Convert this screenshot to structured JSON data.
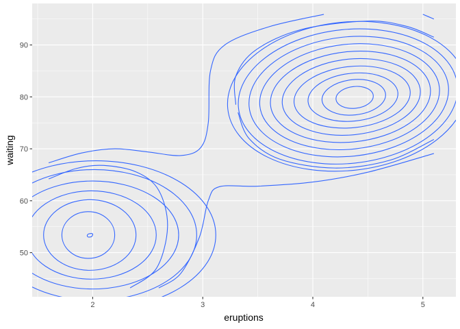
{
  "chart_data": {
    "type": "contour",
    "title": "",
    "xlabel": "eruptions",
    "ylabel": "waiting",
    "xlim": [
      1.45,
      5.3
    ],
    "ylim": [
      41.5,
      98
    ],
    "xticks": [
      2,
      3,
      4,
      5
    ],
    "yticks": [
      50,
      60,
      70,
      80,
      90
    ],
    "xtick_labels": [
      "2",
      "3",
      "4",
      "5"
    ],
    "ytick_labels": [
      "50",
      "60",
      "70",
      "80",
      "90"
    ],
    "grid": true,
    "legend": "none",
    "colors": {
      "panel": "#ebebeb",
      "grid_major": "#ffffff",
      "contour": "#3366ff"
    },
    "contours": [
      {
        "name": "outer-1",
        "points": [
          [
            1.6,
            67.3
          ],
          [
            1.9,
            69.2
          ],
          [
            2.2,
            70
          ],
          [
            2.5,
            69.4
          ],
          [
            2.8,
            68.7
          ],
          [
            2.98,
            70.2
          ],
          [
            3.05,
            75
          ],
          [
            3.07,
            85
          ],
          [
            3.2,
            90
          ],
          [
            3.6,
            93.5
          ],
          [
            4.1,
            95.9
          ]
        ]
      },
      {
        "name": "outer-2",
        "points": [
          [
            1.6,
            64.2
          ],
          [
            1.85,
            66.2
          ],
          [
            2.1,
            66.8
          ],
          [
            2.4,
            65.5
          ],
          [
            2.6,
            62
          ],
          [
            2.68,
            55
          ],
          [
            2.58,
            47
          ],
          [
            2.34,
            43.2
          ]
        ]
      },
      {
        "name": "outer-3",
        "points": [
          [
            2.6,
            43.2
          ],
          [
            2.8,
            46
          ],
          [
            2.97,
            53
          ],
          [
            3.05,
            60
          ],
          [
            3.15,
            62.7
          ],
          [
            3.5,
            62.8
          ],
          [
            4.0,
            63.6
          ],
          [
            4.5,
            65.5
          ],
          [
            5.1,
            69.1
          ]
        ]
      },
      {
        "name": "outer-4",
        "points": [
          [
            5.0,
            95.9
          ],
          [
            5.1,
            95
          ]
        ]
      },
      {
        "name": "upper-a",
        "points": [
          [
            3.3,
            78.5
          ],
          [
            3.3,
            84
          ],
          [
            3.48,
            89
          ],
          [
            3.9,
            93
          ],
          [
            4.5,
            94.6
          ],
          [
            4.85,
            93.6
          ],
          [
            5.1,
            91.5
          ]
        ]
      },
      {
        "name": "upper-b",
        "points": [
          [
            3.32,
            77
          ],
          [
            3.42,
            72
          ],
          [
            3.7,
            68
          ],
          [
            4.2,
            66.3
          ],
          [
            4.7,
            67.8
          ],
          [
            5.1,
            71.8
          ]
        ]
      },
      {
        "name": "left-peak-0",
        "points": [
          [
            1.96,
            53.6
          ],
          [
            1.99,
            53.7
          ],
          [
            2.0,
            53.5
          ],
          [
            1.99,
            53.1
          ],
          [
            1.96,
            53.0
          ],
          [
            1.95,
            53.3
          ],
          [
            1.96,
            53.6
          ]
        ]
      }
    ],
    "peak_left": {
      "cx": 1.96,
      "cy": 53.4
    },
    "left_ring_radii": [
      [
        0.24,
        4.5
      ],
      [
        0.42,
        6.8
      ],
      [
        0.59,
        8.5
      ],
      [
        0.78,
        10.4
      ],
      [
        0.93,
        12.6
      ],
      [
        1.09,
        14.3
      ]
    ],
    "peak_right": {
      "cx": 4.38,
      "cy": 79.9
    },
    "right_ring_radii": [
      [
        0.17,
        2.1
      ],
      [
        0.29,
        3.4
      ],
      [
        0.41,
        4.6
      ],
      [
        0.53,
        5.9
      ],
      [
        0.63,
        7.3
      ],
      [
        0.73,
        8.7
      ],
      [
        0.82,
        10.1
      ],
      [
        0.91,
        11.5
      ],
      [
        1.0,
        12.9
      ],
      [
        1.09,
        14.3
      ]
    ]
  }
}
